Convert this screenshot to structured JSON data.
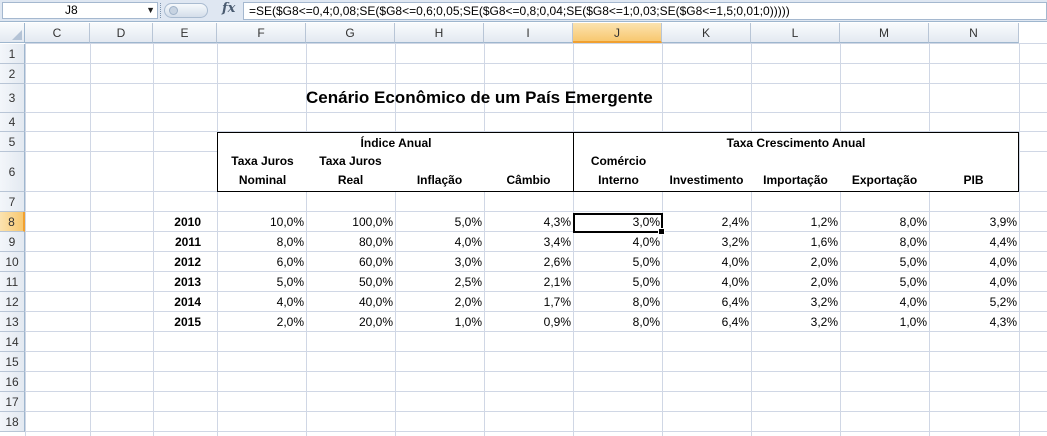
{
  "formula_bar": {
    "name_box": "J8",
    "fx": "fx",
    "formula": "=SE($G8<=0,4;0,08;SE($G8<=0,6;0,05;SE($G8<=0,8;0,04;SE($G8<=1;0,03;SE($G8<=1,5;0,01;0)))))"
  },
  "columns": [
    "C",
    "D",
    "E",
    "F",
    "G",
    "H",
    "I",
    "J",
    "K",
    "L",
    "M",
    "N"
  ],
  "selected_column": "J",
  "rows": [
    "1",
    "2",
    "3",
    "4",
    "5",
    "6",
    "7",
    "8",
    "9",
    "10",
    "11",
    "12",
    "13",
    "14",
    "15",
    "16",
    "17",
    "18"
  ],
  "selected_row": "8",
  "sheet": {
    "title": "Cenário Econômico de um País Emergente",
    "group_headers": {
      "indice": "Índice Anual",
      "taxa": "Taxa Crescimento Anual"
    },
    "sub_headers": [
      [
        "Taxa Juros",
        "Nominal"
      ],
      [
        "Taxa Juros",
        "Real"
      ],
      [
        "",
        "Inflação"
      ],
      [
        "",
        "Câmbio"
      ],
      [
        "Comércio",
        "Interno"
      ],
      [
        "",
        "Investimento"
      ],
      [
        "",
        "Importação"
      ],
      [
        "",
        "Exportação"
      ],
      [
        "",
        "PIB"
      ]
    ],
    "years": [
      "2010",
      "2011",
      "2012",
      "2013",
      "2014",
      "2015"
    ],
    "values": [
      [
        "10,0%",
        "100,0%",
        "5,0%",
        "4,3%",
        "3,0%",
        "2,4%",
        "1,2%",
        "8,0%",
        "3,9%"
      ],
      [
        "8,0%",
        "80,0%",
        "4,0%",
        "3,4%",
        "4,0%",
        "3,2%",
        "1,6%",
        "8,0%",
        "4,4%"
      ],
      [
        "6,0%",
        "60,0%",
        "3,0%",
        "2,6%",
        "5,0%",
        "4,0%",
        "2,0%",
        "5,0%",
        "4,0%"
      ],
      [
        "5,0%",
        "50,0%",
        "2,5%",
        "2,1%",
        "5,0%",
        "4,0%",
        "2,0%",
        "5,0%",
        "4,0%"
      ],
      [
        "4,0%",
        "40,0%",
        "2,0%",
        "1,7%",
        "8,0%",
        "6,4%",
        "3,2%",
        "4,0%",
        "5,2%"
      ],
      [
        "2,0%",
        "20,0%",
        "1,0%",
        "0,9%",
        "8,0%",
        "6,4%",
        "3,2%",
        "1,0%",
        "4,3%"
      ]
    ]
  }
}
